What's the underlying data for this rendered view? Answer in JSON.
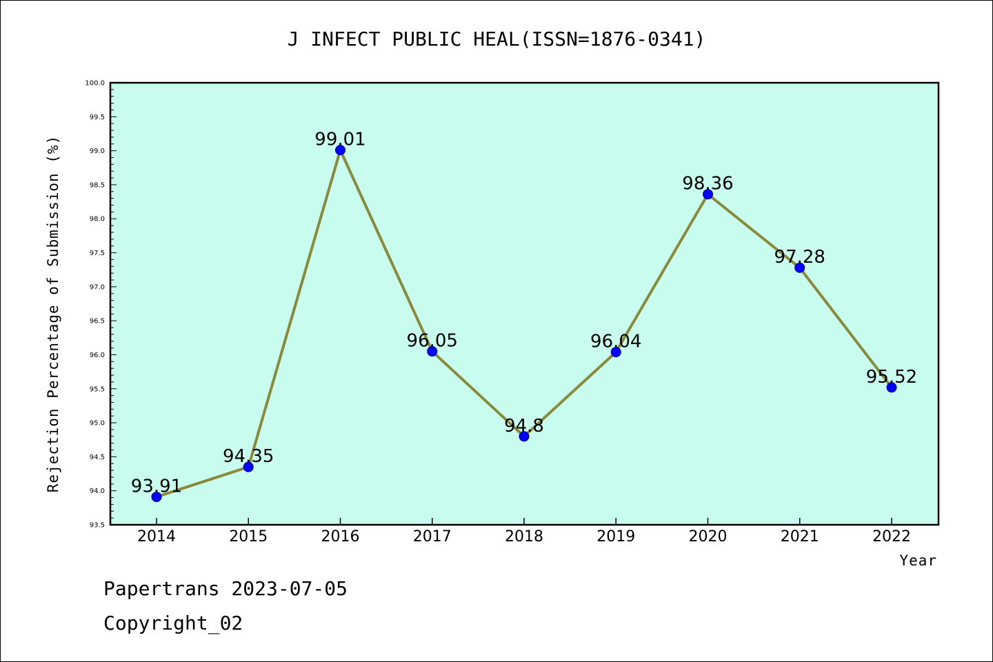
{
  "chart_data": {
    "type": "line",
    "title": "J INFECT PUBLIC HEAL(ISSN=1876-0341)",
    "xlabel": "Year",
    "ylabel": "Rejection Percentage of Submission (%)",
    "categories": [
      "2014",
      "2015",
      "2016",
      "2017",
      "2018",
      "2019",
      "2020",
      "2021",
      "2022"
    ],
    "values": [
      93.91,
      94.35,
      99.01,
      96.05,
      94.8,
      96.04,
      98.36,
      97.28,
      95.52
    ],
    "data_labels": [
      "93.91",
      "94.35",
      "99.01",
      "96.05",
      "94.8",
      "96.04",
      "98.36",
      "97.28",
      "95.52"
    ],
    "ylim": [
      93.5,
      100.0
    ],
    "yticks": [
      "93.5",
      "94.0",
      "94.5",
      "95.0",
      "95.5",
      "96.0",
      "96.5",
      "97.0",
      "97.5",
      "98.0",
      "98.5",
      "99.0",
      "99.5",
      "100.0"
    ],
    "grid": false,
    "colors": {
      "plot_background": "#c8fcee",
      "line": "#8b8a3a",
      "marker": "#0000ff"
    }
  },
  "footer": {
    "line1": "Papertrans 2023-07-05",
    "line2": "Copyright_02"
  }
}
